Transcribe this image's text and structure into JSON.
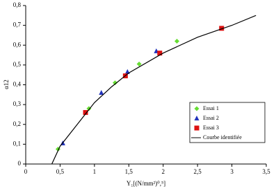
{
  "chart_data": {
    "type": "scatter",
    "x_label": "Y₁[(N/mm²)⁰,⁵]",
    "y_label": "α12",
    "xlim": [
      0,
      3.5
    ],
    "ylim": [
      0,
      0.8
    ],
    "xticks": [
      0,
      {
        "value": 0.5,
        "label": "0,5"
      },
      1,
      {
        "value": 1.5,
        "label": "1,5"
      },
      2,
      {
        "value": 2.5,
        "label": "2,5"
      },
      3,
      {
        "value": 3.5,
        "label": "3,5"
      }
    ],
    "yticks": [
      0,
      {
        "value": 0.1,
        "label": "0,1"
      },
      {
        "value": 0.2,
        "label": "0,2"
      },
      {
        "value": 0.3,
        "label": "0,3"
      },
      {
        "value": 0.4,
        "label": "0,4"
      },
      {
        "value": 0.5,
        "label": "0,5"
      },
      {
        "value": 0.6,
        "label": "0,6"
      },
      {
        "value": 0.7,
        "label": "0,7"
      },
      {
        "value": 0.8,
        "label": "0,8"
      }
    ],
    "legend": "lower right",
    "series": [
      {
        "name": "Essai 1",
        "color": "#66dd33",
        "marker": "diamond",
        "x": [
          0.47,
          0.92,
          1.3,
          1.65,
          2.2
        ],
        "values": [
          0.075,
          0.28,
          0.41,
          0.505,
          0.62
        ]
      },
      {
        "name": "Essai 2",
        "color": "#2233bb",
        "marker": "triangle",
        "x": [
          0.54,
          1.1,
          1.48,
          1.9
        ],
        "values": [
          0.105,
          0.36,
          0.465,
          0.57
        ]
      },
      {
        "name": "Essai 3",
        "color": "#dd1111",
        "marker": "square",
        "x": [
          0.87,
          1.45,
          1.95,
          2.85
        ],
        "values": [
          0.26,
          0.445,
          0.56,
          0.685
        ]
      },
      {
        "name": "Courbe identifiée",
        "color": "#000000",
        "marker": "line",
        "x": [
          0.38,
          0.5,
          0.75,
          1,
          1.25,
          1.5,
          2,
          2.5,
          3,
          3.35
        ],
        "values": [
          0,
          0.09,
          0.2,
          0.31,
          0.39,
          0.46,
          0.56,
          0.64,
          0.7,
          0.75
        ]
      }
    ]
  }
}
